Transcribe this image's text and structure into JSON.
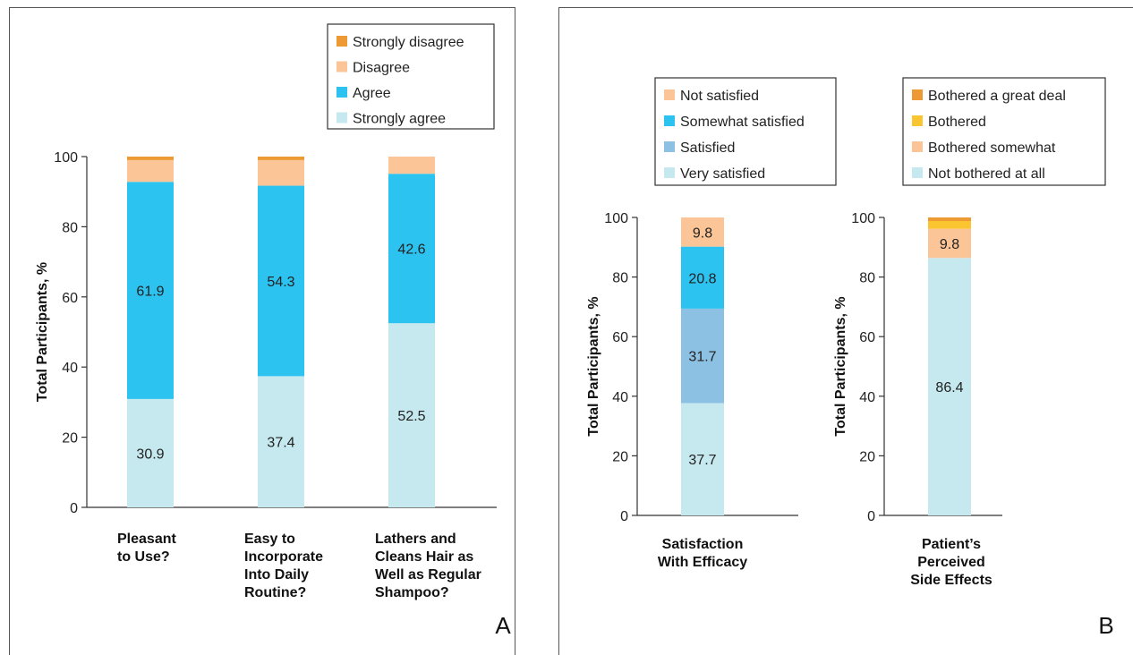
{
  "colors": {
    "strongly_disagree": "#ED9A34",
    "disagree": "#FBC597",
    "agree": "#2CC3F1",
    "strongly_agree": "#C6E8EF",
    "not_satisfied": "#FBC597",
    "somewhat_satisfied": "#2CC3F1",
    "satisfied": "#8DC1E3",
    "very_satisfied": "#C6E8EF",
    "bothered_great_deal": "#ED9A34",
    "bothered": "#FBC531",
    "bothered_somewhat": "#FBC597",
    "not_bothered": "#C6E8EF"
  },
  "chart_data": [
    {
      "panel": "A",
      "type": "bar",
      "stacked": true,
      "ylabel": "Total Participants, %",
      "ylim": [
        0,
        100
      ],
      "yticks": [
        0,
        20,
        40,
        60,
        80,
        100
      ],
      "grid": false,
      "legend_position": "top-right",
      "categories": [
        [
          "Pleasant",
          "to Use?"
        ],
        [
          "Easy to",
          "Incorporate",
          "Into Daily",
          "Routine?"
        ],
        [
          "Lathers and",
          "Cleans Hair as",
          "Well as Regular",
          "Shampoo?"
        ]
      ],
      "legend": [
        "Strongly disagree",
        "Disagree",
        "Agree",
        "Strongly agree"
      ],
      "series": [
        {
          "name": "Strongly agree",
          "color_key": "strongly_agree",
          "values": [
            30.9,
            37.4,
            52.5
          ],
          "labels": [
            "30.9",
            "37.4",
            "52.5"
          ]
        },
        {
          "name": "Agree",
          "color_key": "agree",
          "values": [
            61.9,
            54.3,
            42.6
          ],
          "labels": [
            "61.9",
            "54.3",
            "42.6"
          ]
        },
        {
          "name": "Disagree",
          "color_key": "disagree",
          "values": [
            6.2,
            7.3,
            4.9
          ],
          "labels": [
            "",
            "",
            ""
          ]
        },
        {
          "name": "Strongly disagree",
          "color_key": "strongly_disagree",
          "values": [
            1.0,
            1.0,
            0.0
          ],
          "labels": [
            "",
            "",
            ""
          ]
        }
      ]
    },
    {
      "panel": "B",
      "type": "bar",
      "stacked": true,
      "ylabel": "Total Participants, %",
      "ylim": [
        0,
        100
      ],
      "yticks": [
        0,
        20,
        40,
        60,
        80,
        100
      ],
      "grid": false,
      "legend_position": "top",
      "categories": [
        [
          "Satisfaction",
          "With Efficacy"
        ]
      ],
      "legend": [
        "Not satisfied",
        "Somewhat satisfied",
        "Satisfied",
        "Very satisfied"
      ],
      "series": [
        {
          "name": "Very satisfied",
          "color_key": "very_satisfied",
          "values": [
            37.7
          ],
          "labels": [
            "37.7"
          ]
        },
        {
          "name": "Satisfied",
          "color_key": "satisfied",
          "values": [
            31.7
          ],
          "labels": [
            "31.7"
          ]
        },
        {
          "name": "Somewhat satisfied",
          "color_key": "somewhat_satisfied",
          "values": [
            20.8
          ],
          "labels": [
            "20.8"
          ]
        },
        {
          "name": "Not satisfied",
          "color_key": "not_satisfied",
          "values": [
            9.8
          ],
          "labels": [
            "9.8"
          ]
        }
      ]
    },
    {
      "panel": "B",
      "type": "bar",
      "stacked": true,
      "ylabel": "Total Participants, %",
      "ylim": [
        0,
        100
      ],
      "yticks": [
        0,
        20,
        40,
        60,
        80,
        100
      ],
      "grid": false,
      "legend_position": "top-right",
      "categories": [
        [
          "Patient’s",
          "Perceived",
          "Side Effects"
        ]
      ],
      "legend": [
        "Bothered a great deal",
        "Bothered",
        "Bothered somewhat",
        "Not bothered at all"
      ],
      "series": [
        {
          "name": "Not bothered at all",
          "color_key": "not_bothered",
          "values": [
            86.4
          ],
          "labels": [
            "86.4"
          ]
        },
        {
          "name": "Bothered somewhat",
          "color_key": "bothered_somewhat",
          "values": [
            9.8
          ],
          "labels": [
            "9.8"
          ]
        },
        {
          "name": "Bothered",
          "color_key": "bothered",
          "values": [
            2.6
          ],
          "labels": [
            ""
          ]
        },
        {
          "name": "Bothered a great deal",
          "color_key": "bothered_great_deal",
          "values": [
            1.2
          ],
          "labels": [
            ""
          ]
        }
      ]
    }
  ],
  "panel_letters": [
    "A",
    "B"
  ]
}
